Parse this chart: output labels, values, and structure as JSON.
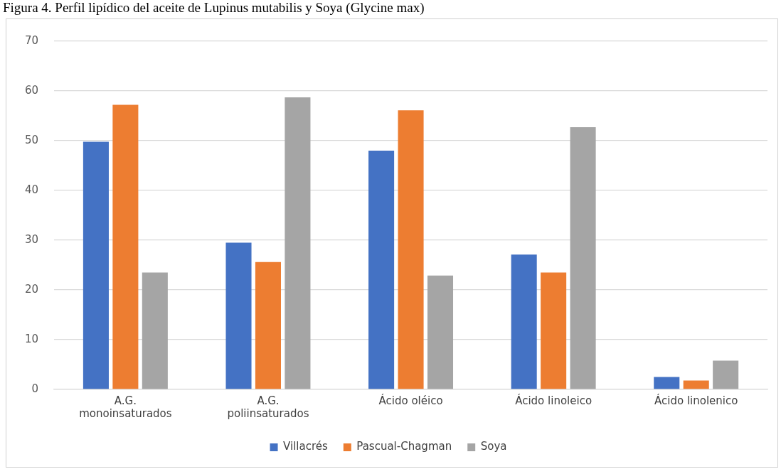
{
  "chart_data": {
    "type": "bar",
    "title": "Figura 4. Perfil lipídico del aceite de Lupinus mutabilis y Soya (Glycine max)",
    "categories": [
      "A.G. monoinsaturados",
      "A.G. poliinsaturados",
      "Ácido oléico",
      "Ácido linoleico",
      "Ácido linolenico"
    ],
    "series": [
      {
        "name": "Villacrés",
        "color": "#4472c4",
        "values": [
          49.8,
          29.5,
          48.0,
          27.1,
          2.5
        ]
      },
      {
        "name": "Pascual-Chagman",
        "color": "#ed7d31",
        "values": [
          57.2,
          25.6,
          56.1,
          23.5,
          1.8
        ]
      },
      {
        "name": "Soya",
        "color": "#a5a5a5",
        "values": [
          23.5,
          58.7,
          22.9,
          52.7,
          5.8
        ]
      }
    ],
    "ylim": [
      0,
      70
    ],
    "yticks": [
      0,
      10,
      20,
      30,
      40,
      50,
      60,
      70
    ],
    "grid": "y",
    "legend": "bottom"
  }
}
